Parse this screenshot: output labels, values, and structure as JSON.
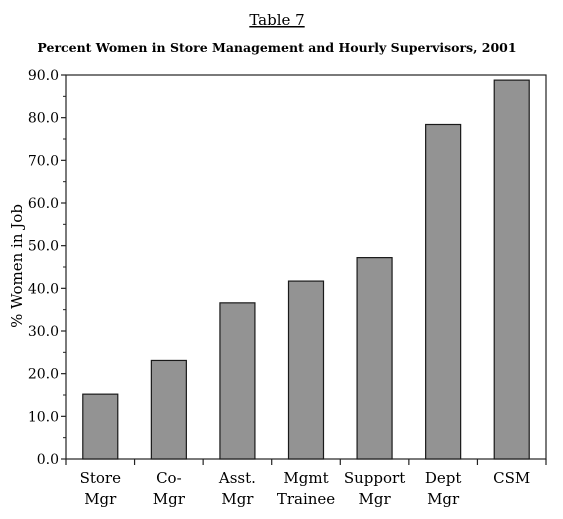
{
  "caption": "Table 7",
  "chart_data": {
    "type": "bar",
    "title": "Percent Women in Store Management and Hourly Supervisors, 2001",
    "xlabel": "",
    "ylabel": "% Women in Job",
    "ylim": [
      0,
      90
    ],
    "yticks": [
      "0.0",
      "10.0",
      "20.0",
      "30.0",
      "40.0",
      "50.0",
      "60.0",
      "70.0",
      "80.0",
      "90.0"
    ],
    "categories": [
      [
        "Store",
        "Mgr"
      ],
      [
        "Co-",
        "Mgr"
      ],
      [
        "Asst.",
        "Mgr"
      ],
      [
        "Mgmt",
        "Trainee"
      ],
      [
        "Support",
        "Mgr"
      ],
      [
        "Dept",
        "Mgr"
      ],
      [
        "CSM"
      ]
    ],
    "values": [
      15.2,
      23.1,
      36.6,
      41.7,
      47.2,
      78.4,
      88.8
    ],
    "bar_color": "#939393",
    "grid": false,
    "legend": "none"
  }
}
